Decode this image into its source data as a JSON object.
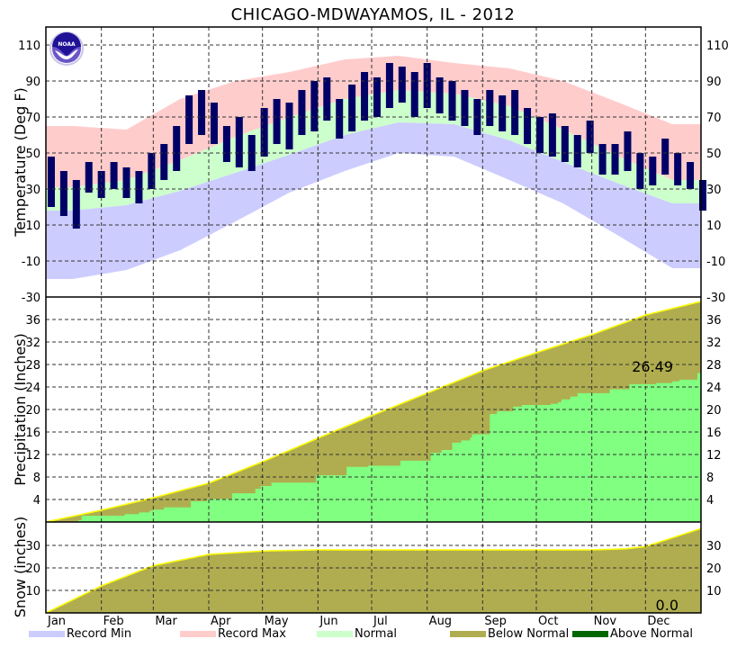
{
  "chart_data": {
    "type": "area",
    "title": "CHICAGO-MDWAYAMOS, IL - 2012",
    "months": [
      "Jan",
      "Feb",
      "Mar",
      "Apr",
      "May",
      "Jun",
      "Jul",
      "Aug",
      "Sep",
      "Oct",
      "Nov",
      "Dec"
    ],
    "month_start_days": [
      0,
      31,
      60,
      91,
      121,
      152,
      182,
      213,
      244,
      274,
      305,
      335
    ],
    "days_in_year": 366,
    "temperature": {
      "ylabel": "Temperature (Deg F)",
      "ylim": [
        -30,
        120
      ],
      "ticks": [
        "110",
        "90",
        "70",
        "50",
        "30",
        "10",
        "-10",
        "-30"
      ],
      "tick_values": [
        110,
        90,
        70,
        50,
        30,
        10,
        -10,
        -30
      ],
      "monthly_mid_day": [
        15,
        45,
        75,
        106,
        136,
        167,
        197,
        228,
        259,
        289,
        320,
        350
      ],
      "record_max": [
        65,
        63,
        80,
        90,
        95,
        102,
        104,
        100,
        97,
        90,
        78,
        66
      ],
      "record_min": [
        -20,
        -15,
        -4,
        12,
        28,
        40,
        50,
        48,
        35,
        22,
        4,
        -14
      ],
      "normal_high": [
        31,
        35,
        46,
        59,
        70,
        80,
        85,
        83,
        76,
        63,
        48,
        35
      ],
      "normal_low": [
        18,
        21,
        29,
        39,
        49,
        60,
        67,
        66,
        57,
        45,
        33,
        22
      ],
      "observed_weekly_day_start": 3,
      "observed_weekly_step_days": 7,
      "observed_high": [
        48,
        40,
        35,
        45,
        40,
        45,
        42,
        40,
        50,
        55,
        65,
        82,
        85,
        78,
        65,
        70,
        60,
        75,
        80,
        78,
        85,
        90,
        92,
        80,
        88,
        95,
        92,
        100,
        98,
        95,
        100,
        92,
        90,
        85,
        80,
        85,
        82,
        85,
        75,
        70,
        72,
        65,
        60,
        68,
        55,
        55,
        62,
        50,
        48,
        58,
        50,
        45,
        35
      ],
      "observed_low": [
        20,
        15,
        8,
        28,
        25,
        30,
        25,
        22,
        30,
        35,
        40,
        55,
        60,
        55,
        45,
        42,
        40,
        48,
        55,
        52,
        60,
        62,
        68,
        58,
        62,
        68,
        70,
        75,
        78,
        70,
        75,
        72,
        68,
        65,
        60,
        65,
        62,
        60,
        55,
        50,
        48,
        45,
        42,
        50,
        38,
        38,
        40,
        30,
        32,
        38,
        32,
        30,
        18
      ]
    },
    "precipitation": {
      "ylabel": "Precipitation (Inches)",
      "ylim": [
        0,
        40
      ],
      "ticks": [
        "36",
        "32",
        "28",
        "24",
        "20",
        "16",
        "12",
        "8",
        "4"
      ],
      "tick_values": [
        36,
        32,
        28,
        24,
        20,
        16,
        12,
        8,
        4
      ],
      "normal_days": [
        0,
        31,
        60,
        91,
        121,
        152,
        182,
        213,
        244,
        274,
        305,
        335,
        366
      ],
      "normal_cumulative": [
        0,
        2.1,
        4.3,
        6.9,
        10.7,
        14.9,
        18.9,
        22.9,
        26.9,
        30.1,
        33.3,
        36.8,
        39.2
      ],
      "observed_step_days": [
        0,
        18,
        20,
        44,
        52,
        58,
        60,
        66,
        81,
        90,
        104,
        103,
        117,
        120,
        126,
        151,
        168,
        180,
        182,
        198,
        204,
        215,
        221,
        227,
        232,
        237,
        238,
        248,
        252,
        261,
        266,
        282,
        286,
        288,
        293,
        297,
        315,
        326,
        341,
        350,
        354,
        364
      ],
      "observed_cumulative": [
        0,
        0.3,
        1.1,
        1.4,
        1.7,
        2.0,
        2.2,
        2.6,
        3.7,
        4.1,
        5.1,
        5.1,
        5.9,
        6.4,
        7.0,
        8.3,
        9.8,
        10.0,
        10.0,
        10.9,
        10.9,
        12.3,
        12.8,
        14.1,
        14.5,
        15.0,
        15.6,
        19.2,
        19.7,
        20.5,
        20.8,
        21.0,
        21.3,
        21.8,
        22.3,
        22.9,
        23.6,
        24.5,
        24.7,
        25.0,
        25.3,
        26.49
      ],
      "annotation": "26.49"
    },
    "snow": {
      "ylabel": "Snow (inches)",
      "ylim": [
        0,
        40
      ],
      "ticks": [
        "30",
        "20",
        "10"
      ],
      "tick_values": [
        30,
        20,
        10
      ],
      "normal_days": [
        0,
        31,
        60,
        91,
        121,
        152,
        182,
        213,
        244,
        274,
        305,
        324,
        335,
        366
      ],
      "normal_cumulative": [
        0,
        12,
        21,
        26,
        27.5,
        28,
        28,
        28,
        28,
        28,
        28,
        28.5,
        29.5,
        37.5
      ],
      "observed_total": "0.0"
    },
    "legend": [
      {
        "label": "Record Min",
        "color": "#ccccff"
      },
      {
        "label": "Record Max",
        "color": "#ffcccc"
      },
      {
        "label": "Normal",
        "color": "#ccffcc"
      },
      {
        "label": "Below Normal",
        "color": "#b0ad50"
      },
      {
        "label": "Above Normal",
        "color": "#006600"
      }
    ],
    "colors": {
      "observed": "#000066",
      "precip_observed": "#80ff80",
      "normal_line": "#ffff00",
      "logo": "#3d2ab8"
    },
    "logo_text": "NOAA"
  }
}
